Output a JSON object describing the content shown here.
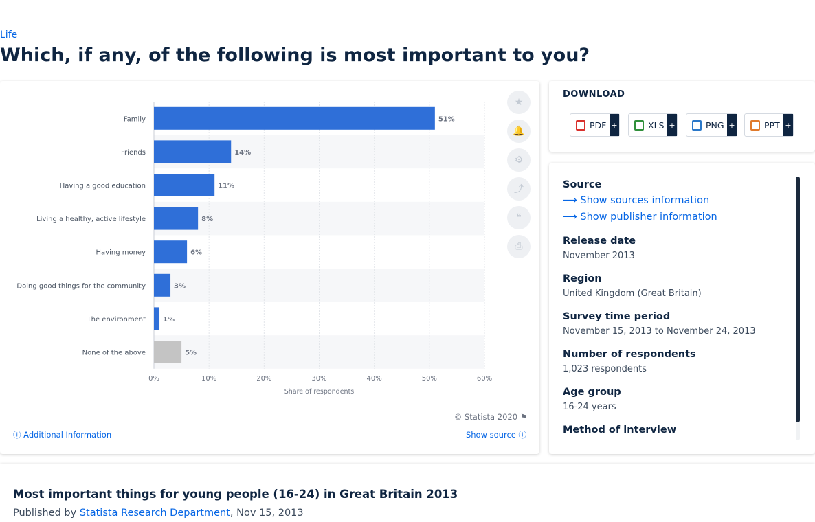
{
  "breadcrumb": "Life",
  "page_title": "Which, if any, of the following is most important to you?",
  "chart_data": {
    "type": "bar",
    "orientation": "horizontal",
    "categories": [
      "Family",
      "Friends",
      "Having a good education",
      "Living a healthy, active lifestyle",
      "Having money",
      "Doing good things for the community",
      "The environment",
      "None of the above"
    ],
    "values": [
      51,
      14,
      11,
      8,
      6,
      3,
      1,
      5
    ],
    "data_labels": [
      "51%",
      "14%",
      "11%",
      "8%",
      "6%",
      "3%",
      "1%",
      "5%"
    ],
    "bar_colors": [
      "#2f6fd8",
      "#2f6fd8",
      "#2f6fd8",
      "#2f6fd8",
      "#2f6fd8",
      "#2f6fd8",
      "#2f6fd8",
      "#c4c4c4"
    ],
    "xlabel": "Share of respondents",
    "xlim": [
      0,
      60
    ],
    "xticks": [
      "0%",
      "10%",
      "20%",
      "30%",
      "40%",
      "50%",
      "60%"
    ],
    "grid": true
  },
  "tools": [
    {
      "icon": "star-icon",
      "glyph": "★"
    },
    {
      "icon": "bell-icon",
      "glyph": "🔔"
    },
    {
      "icon": "gear-icon",
      "glyph": "⚙"
    },
    {
      "icon": "share-icon",
      "glyph": "⤴"
    },
    {
      "icon": "quote-icon",
      "glyph": "❝"
    },
    {
      "icon": "print-icon",
      "glyph": "⎙"
    }
  ],
  "copyright": "© Statista 2020",
  "additional_info": "Additional Information",
  "show_source": "Show source",
  "download": {
    "title": "DOWNLOAD",
    "buttons": [
      {
        "label": "PDF",
        "color": "#d9302c"
      },
      {
        "label": "XLS",
        "color": "#2f8f3a"
      },
      {
        "label": "PNG",
        "color": "#2a78c9"
      },
      {
        "label": "PPT",
        "color": "#e07a2c"
      }
    ],
    "plus": "+"
  },
  "info": {
    "source_h": "Source",
    "sources_link": "Show sources information",
    "publisher_link": "Show publisher information",
    "release_h": "Release date",
    "release_v": "November 2013",
    "region_h": "Region",
    "region_v": "United Kingdom (Great Britain)",
    "survey_h": "Survey time period",
    "survey_v": "November 15, 2013 to November 24, 2013",
    "respondents_h": "Number of respondents",
    "respondents_v": "1,023 respondents",
    "age_h": "Age group",
    "age_v": "16-24 years",
    "method_h": "Method of interview"
  },
  "footer": {
    "title": "Most important things for young people (16-24) in Great Britain 2013",
    "published_by": "Published by",
    "publisher": "Statista Research Department",
    "date": ", Nov 15, 2013"
  }
}
